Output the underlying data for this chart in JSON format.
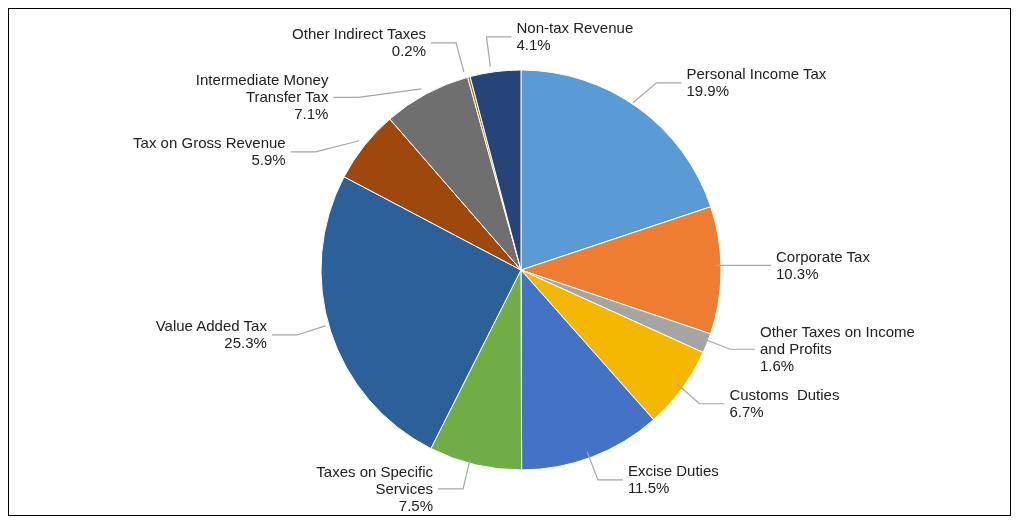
{
  "chart_data": {
    "type": "pie",
    "categories": [
      "Personal Income Tax",
      "Corporate Tax",
      "Other Taxes on Income and Profits",
      "Customs  Duties",
      "Excise Duties",
      "Taxes on Specific Services",
      "Value Added Tax",
      "Tax on Gross Revenue",
      "Intermediate Money Transfer Tax",
      "Other Indirect Taxes",
      "Non-tax Revenue"
    ],
    "values": [
      19.9,
      10.3,
      1.6,
      6.7,
      11.5,
      7.5,
      25.3,
      5.9,
      7.1,
      0.2,
      4.1
    ],
    "value_labels": [
      "19.9%",
      "10.3%",
      "1.6%",
      "6.7%",
      "11.5%",
      "7.5%",
      "25.3%",
      "5.9%",
      "7.1%",
      "0.2%",
      "4.1%"
    ],
    "colors": [
      "#5b9bd5",
      "#ed7d31",
      "#a5a5a5",
      "#f5b800",
      "#4472c4",
      "#70ad47",
      "#2b6198",
      "#9e480e",
      "#6f6f6f",
      "#997300",
      "#264478"
    ],
    "legend": false
  }
}
